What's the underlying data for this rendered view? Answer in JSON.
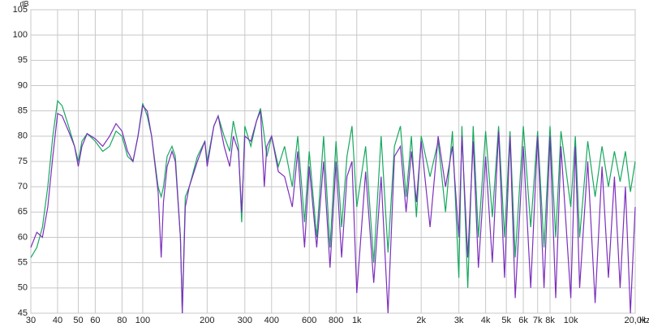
{
  "chart_data": {
    "type": "line",
    "x_label": "Hz",
    "y_label": "dB",
    "log_x": true,
    "grid": true,
    "xlim": [
      30,
      20000
    ],
    "ylim": [
      45,
      105
    ],
    "xticks": [
      30,
      40,
      50,
      60,
      80,
      100,
      200,
      300,
      400,
      600,
      800,
      {
        "value": 1000,
        "label": "1k"
      },
      {
        "value": 2000,
        "label": "2k"
      },
      {
        "value": 3000,
        "label": "3k"
      },
      {
        "value": 4000,
        "label": "4k"
      },
      {
        "value": 5000,
        "label": "5k"
      },
      {
        "value": 6000,
        "label": "6k"
      },
      {
        "value": 7000,
        "label": "7k"
      },
      {
        "value": 8000,
        "label": "8k"
      },
      {
        "value": 10000,
        "label": "10k"
      },
      {
        "value": 20000,
        "label": "20,0k"
      }
    ],
    "yticks": [
      45,
      50,
      55,
      60,
      65,
      70,
      75,
      80,
      85,
      90,
      95,
      100,
      105
    ],
    "x": [
      30,
      32,
      34,
      36,
      38,
      40,
      42,
      45,
      48,
      50,
      52,
      55,
      60,
      65,
      70,
      75,
      80,
      85,
      90,
      95,
      100,
      105,
      110,
      118,
      122,
      125,
      130,
      137,
      142,
      150,
      153,
      158,
      165,
      180,
      195,
      200,
      215,
      225,
      240,
      255,
      265,
      280,
      290,
      300,
      320,
      340,
      355,
      370,
      380,
      400,
      430,
      460,
      500,
      530,
      570,
      600,
      650,
      700,
      750,
      800,
      850,
      900,
      950,
      1000,
      1100,
      1200,
      1300,
      1400,
      1500,
      1600,
      1700,
      1800,
      1900,
      2000,
      2200,
      2400,
      2600,
      2800,
      3000,
      3100,
      3300,
      3500,
      3700,
      4000,
      4300,
      4600,
      4900,
      5200,
      5500,
      6000,
      6500,
      7000,
      7500,
      8000,
      8500,
      9000,
      10000,
      10500,
      11000,
      12000,
      13000,
      14000,
      15000,
      16000,
      17000,
      18000,
      19000,
      20000
    ],
    "series": [
      {
        "name": "Green",
        "color": "#17a85e",
        "values": [
          56,
          58,
          62,
          70,
          80,
          87,
          86,
          82,
          78,
          75,
          79,
          80.5,
          79,
          77,
          78,
          81,
          80,
          76,
          75,
          80,
          86.5,
          84,
          80,
          70,
          68,
          70,
          76,
          78,
          76,
          60,
          45,
          68,
          70,
          76,
          79,
          75,
          82,
          84,
          80,
          77,
          83,
          78,
          63,
          82,
          78,
          83,
          85.5,
          80,
          76,
          80,
          74,
          78,
          70,
          80,
          63,
          77,
          60,
          80,
          58,
          79,
          62,
          76,
          82,
          66,
          78,
          55,
          80,
          57,
          78,
          82,
          68,
          80,
          64,
          80,
          72,
          79,
          65,
          81,
          52,
          82,
          50,
          82,
          60,
          81,
          64,
          82,
          60,
          81,
          56,
          82,
          62,
          81,
          58,
          82,
          60,
          81,
          66,
          80,
          60,
          79,
          68,
          78,
          70,
          77,
          71,
          77,
          69,
          75
        ]
      },
      {
        "name": "Purple",
        "color": "#7c2fbd",
        "values": [
          58,
          61,
          60,
          66,
          76,
          84.5,
          84,
          81,
          78,
          74,
          78,
          80.5,
          79.5,
          78,
          80,
          82.5,
          81,
          77,
          75,
          80,
          86,
          85,
          80,
          69,
          56,
          67,
          74,
          77,
          75,
          60,
          45,
          66,
          70,
          75,
          79,
          74,
          82,
          84,
          78,
          74,
          80,
          77,
          65,
          80,
          79,
          83,
          85,
          70,
          78,
          80,
          73,
          72,
          66,
          77,
          58,
          74,
          58,
          75,
          54,
          75,
          56,
          72,
          75,
          49,
          73,
          51,
          72,
          45,
          76,
          78,
          65,
          77,
          67,
          79,
          62,
          80,
          70,
          78,
          60,
          80,
          56,
          79,
          54,
          76,
          55,
          81,
          52,
          80,
          48,
          78,
          50,
          80,
          50,
          80,
          48,
          78,
          48,
          78,
          50,
          75,
          47,
          74,
          52,
          72,
          50,
          70,
          45,
          66
        ]
      }
    ]
  }
}
